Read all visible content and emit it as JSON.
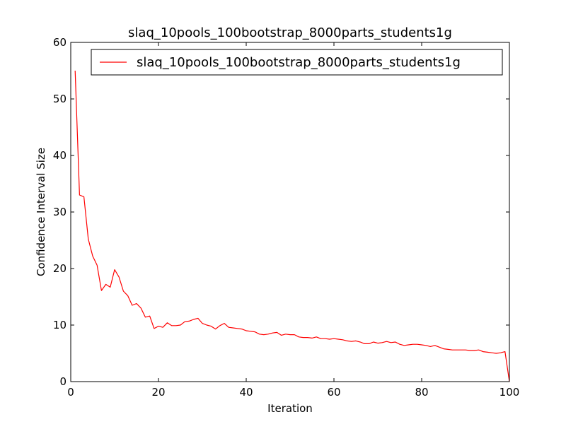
{
  "chart_data": {
    "type": "line",
    "title": "slaq_10pools_100bootstrap_8000parts_students1g",
    "xlabel": "Iteration",
    "ylabel": "Confidence Interval Size",
    "xlim": [
      0,
      100
    ],
    "ylim": [
      0,
      60
    ],
    "xticks": [
      "0",
      "20",
      "40",
      "60",
      "80",
      "100"
    ],
    "yticks": [
      "0",
      "10",
      "20",
      "30",
      "40",
      "50",
      "60"
    ],
    "grid": false,
    "legend_position": "top-right",
    "series": [
      {
        "name": "slaq_10pools_100bootstrap_8000parts_students1g",
        "color": "#ff0000",
        "x": [
          1,
          2,
          3,
          4,
          5,
          6,
          7,
          8,
          9,
          10,
          11,
          12,
          13,
          14,
          15,
          16,
          17,
          18,
          19,
          20,
          21,
          22,
          23,
          24,
          25,
          26,
          27,
          28,
          29,
          30,
          31,
          32,
          33,
          34,
          35,
          36,
          37,
          38,
          39,
          40,
          41,
          42,
          43,
          44,
          45,
          46,
          47,
          48,
          49,
          50,
          51,
          52,
          53,
          54,
          55,
          56,
          57,
          58,
          59,
          60,
          61,
          62,
          63,
          64,
          65,
          66,
          67,
          68,
          69,
          70,
          71,
          72,
          73,
          74,
          75,
          76,
          77,
          78,
          79,
          80,
          81,
          82,
          83,
          84,
          85,
          86,
          87,
          88,
          89,
          90,
          91,
          92,
          93,
          94,
          95,
          96,
          97,
          98,
          99,
          100
        ],
        "y": [
          55.0,
          33.0,
          32.7,
          25.2,
          22.2,
          20.6,
          16.1,
          17.2,
          16.7,
          19.8,
          18.5,
          16.0,
          15.2,
          13.5,
          13.8,
          13.0,
          11.4,
          11.6,
          9.4,
          9.8,
          9.6,
          10.4,
          9.9,
          9.9,
          10.0,
          10.6,
          10.7,
          11.0,
          11.2,
          10.3,
          10.0,
          9.8,
          9.3,
          9.9,
          10.3,
          9.6,
          9.5,
          9.4,
          9.3,
          9.0,
          8.9,
          8.8,
          8.4,
          8.3,
          8.4,
          8.6,
          8.7,
          8.2,
          8.4,
          8.3,
          8.3,
          7.9,
          7.8,
          7.8,
          7.7,
          7.9,
          7.6,
          7.6,
          7.5,
          7.6,
          7.5,
          7.4,
          7.2,
          7.1,
          7.2,
          7.0,
          6.7,
          6.7,
          7.0,
          6.8,
          6.9,
          7.1,
          6.9,
          7.0,
          6.6,
          6.4,
          6.5,
          6.6,
          6.6,
          6.5,
          6.4,
          6.2,
          6.4,
          6.1,
          5.8,
          5.7,
          5.6,
          5.6,
          5.6,
          5.6,
          5.5,
          5.5,
          5.6,
          5.3,
          5.2,
          5.1,
          5.0,
          5.1,
          5.3,
          0.0
        ]
      }
    ]
  }
}
